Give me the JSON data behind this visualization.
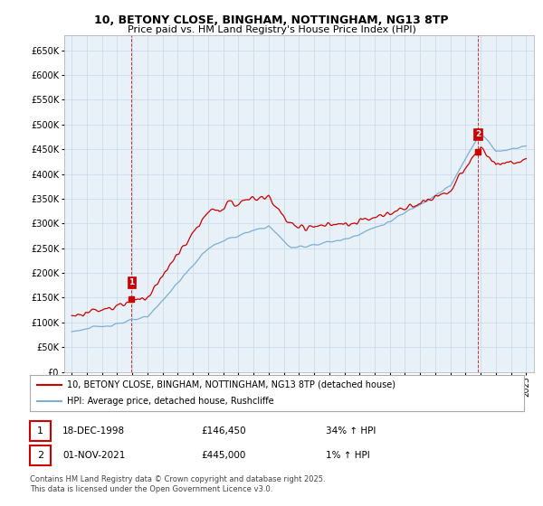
{
  "title": "10, BETONY CLOSE, BINGHAM, NOTTINGHAM, NG13 8TP",
  "subtitle": "Price paid vs. HM Land Registry's House Price Index (HPI)",
  "legend_line1": "10, BETONY CLOSE, BINGHAM, NOTTINGHAM, NG13 8TP (detached house)",
  "legend_line2": "HPI: Average price, detached house, Rushcliffe",
  "annotation1_label": "1",
  "annotation1_date": "18-DEC-1998",
  "annotation1_price": "£146,450",
  "annotation1_hpi": "34% ↑ HPI",
  "annotation2_label": "2",
  "annotation2_date": "01-NOV-2021",
  "annotation2_price": "£445,000",
  "annotation2_hpi": "1% ↑ HPI",
  "footer": "Contains HM Land Registry data © Crown copyright and database right 2025.\nThis data is licensed under the Open Government Licence v3.0.",
  "sale1_year": 1998.96,
  "sale1_price": 146450,
  "sale2_year": 2021.83,
  "sale2_price": 445000,
  "hpi_color": "#7bafd4",
  "price_color": "#cc0000",
  "background_color": "#ffffff",
  "grid_color": "#c8d8e8",
  "plot_bg_color": "#e8f0f8",
  "ylim": [
    0,
    680000
  ],
  "xlim": [
    1994.5,
    2025.5
  ]
}
